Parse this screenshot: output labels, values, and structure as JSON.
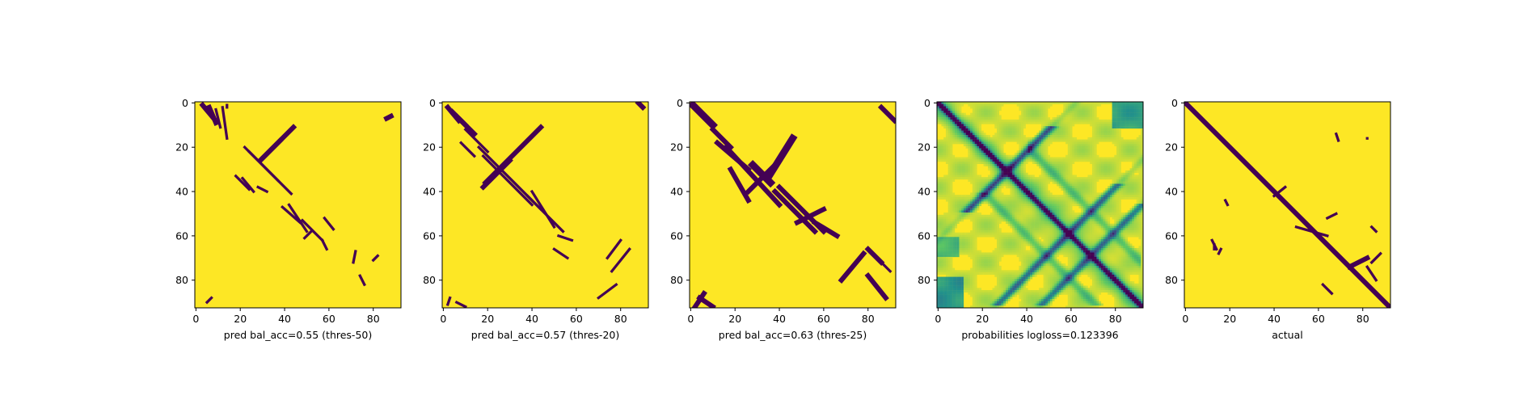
{
  "chart_data": [
    {
      "type": "heatmap",
      "xlabel": "pred bal_acc=0.55 (thres-50)",
      "xticks": [
        "0",
        "20",
        "40",
        "60",
        "80"
      ],
      "yticks": [
        "0",
        "20",
        "40",
        "60",
        "80"
      ],
      "n": 93,
      "colors": {
        "low": "#440154",
        "high": "#fde725"
      },
      "segments": [
        [
          3,
          1,
          8,
          7,
          1
        ],
        [
          6,
          2,
          9,
          9,
          1
        ],
        [
          9,
          3,
          11,
          11,
          0
        ],
        [
          12,
          2,
          14,
          16,
          0
        ],
        [
          14,
          1,
          14,
          2,
          0
        ],
        [
          29,
          26,
          38,
          17,
          1
        ],
        [
          30,
          25,
          44,
          11,
          1
        ],
        [
          22,
          20,
          43,
          41,
          0
        ],
        [
          24,
          22,
          37,
          35,
          0
        ],
        [
          18,
          33,
          24,
          39,
          0
        ],
        [
          21,
          34,
          26,
          40,
          0
        ],
        [
          28,
          38,
          32,
          40,
          0
        ],
        [
          39,
          47,
          47,
          54,
          0
        ],
        [
          42,
          46,
          50,
          58,
          0
        ],
        [
          48,
          53,
          57,
          62,
          0
        ],
        [
          49,
          61,
          52,
          58,
          0
        ],
        [
          58,
          52,
          62,
          57,
          0
        ],
        [
          57,
          62,
          59,
          66,
          0
        ],
        [
          72,
          67,
          71,
          72,
          0
        ],
        [
          74,
          78,
          76,
          82,
          0
        ],
        [
          82,
          69,
          80,
          71,
          0
        ],
        [
          88,
          6,
          86,
          7,
          1
        ],
        [
          7,
          88,
          5,
          90,
          0
        ]
      ]
    },
    {
      "type": "heatmap",
      "xlabel": "pred bal_acc=0.57 (thres-20)",
      "xticks": [
        "0",
        "20",
        "40",
        "60",
        "80"
      ],
      "yticks": [
        "0",
        "20",
        "40",
        "60",
        "80"
      ],
      "n": 93,
      "colors": {
        "low": "#440154",
        "high": "#fde725"
      },
      "segments": [
        [
          2,
          2,
          7,
          8,
          1
        ],
        [
          4,
          4,
          10,
          10,
          1
        ],
        [
          6,
          6,
          14,
          14,
          1
        ],
        [
          10,
          12,
          20,
          22,
          0
        ],
        [
          8,
          18,
          14,
          24,
          0
        ],
        [
          18,
          38,
          30,
          26,
          1
        ],
        [
          19,
          36,
          44,
          11,
          1
        ],
        [
          16,
          20,
          44,
          48,
          0
        ],
        [
          18,
          24,
          40,
          46,
          0
        ],
        [
          38,
          42,
          54,
          58,
          0
        ],
        [
          40,
          40,
          50,
          56,
          0
        ],
        [
          52,
          60,
          58,
          62,
          0
        ],
        [
          50,
          66,
          56,
          70,
          0
        ],
        [
          80,
          62,
          74,
          70,
          0
        ],
        [
          84,
          66,
          76,
          76,
          0
        ],
        [
          78,
          82,
          70,
          88,
          0
        ],
        [
          88,
          0,
          90,
          2,
          1
        ],
        [
          6,
          90,
          10,
          92,
          0
        ],
        [
          3,
          88,
          2,
          91,
          0
        ]
      ]
    },
    {
      "type": "heatmap",
      "xlabel": "pred bal_acc=0.63 (thres-25)",
      "xticks": [
        "0",
        "20",
        "40",
        "60",
        "80"
      ],
      "yticks": [
        "0",
        "20",
        "40",
        "60",
        "80"
      ],
      "n": 93,
      "colors": {
        "low": "#440154",
        "high": "#fde725"
      },
      "segments": [
        [
          1,
          1,
          10,
          10,
          2
        ],
        [
          10,
          12,
          18,
          20,
          1
        ],
        [
          12,
          18,
          26,
          30,
          1
        ],
        [
          16,
          20,
          40,
          46,
          1
        ],
        [
          46,
          16,
          36,
          32,
          2
        ],
        [
          28,
          28,
          36,
          36,
          2
        ],
        [
          26,
          40,
          40,
          26,
          1
        ],
        [
          18,
          30,
          26,
          44,
          1
        ],
        [
          38,
          40,
          56,
          58,
          1
        ],
        [
          40,
          38,
          60,
          58,
          1
        ],
        [
          48,
          54,
          60,
          48,
          1
        ],
        [
          56,
          54,
          66,
          60,
          1
        ],
        [
          68,
          80,
          78,
          68,
          1
        ],
        [
          80,
          66,
          86,
          72,
          1
        ],
        [
          80,
          78,
          88,
          88,
          1
        ],
        [
          84,
          70,
          90,
          76,
          0
        ],
        [
          86,
          2,
          92,
          8,
          1
        ],
        [
          4,
          88,
          10,
          92,
          1
        ],
        [
          2,
          92,
          6,
          86,
          1
        ]
      ]
    },
    {
      "type": "heatmap",
      "xlabel": "probabilities logloss=0.123396",
      "xticks": [
        "0",
        "20",
        "40",
        "60",
        "80"
      ],
      "yticks": [
        "0",
        "20",
        "40",
        "60",
        "80"
      ],
      "n": 93,
      "colors": {
        "low": "#440154",
        "mid1": "#21918c",
        "mid2": "#5ec962",
        "high": "#fde725"
      },
      "segments": [],
      "probability_map": true
    },
    {
      "type": "heatmap",
      "xlabel": "actual",
      "xticks": [
        "0",
        "20",
        "40",
        "60",
        "80"
      ],
      "yticks": [
        "0",
        "20",
        "40",
        "60",
        "80"
      ],
      "n": 93,
      "colors": {
        "low": "#440154",
        "high": "#fde725"
      },
      "segments": [
        [
          0,
          0,
          92,
          92,
          1
        ],
        [
          12,
          62,
          14,
          66,
          0
        ],
        [
          19,
          46,
          18,
          44,
          0
        ],
        [
          16,
          66,
          15,
          68,
          0
        ],
        [
          45,
          38,
          40,
          42,
          0
        ],
        [
          68,
          14,
          69,
          17,
          0
        ],
        [
          64,
          52,
          68,
          50,
          0
        ],
        [
          62,
          82,
          66,
          86,
          0
        ],
        [
          74,
          74,
          82,
          70,
          1
        ],
        [
          82,
          74,
          86,
          80,
          0
        ],
        [
          88,
          68,
          84,
          72,
          0
        ],
        [
          84,
          56,
          86,
          58,
          0
        ],
        [
          13,
          64,
          13,
          66,
          0
        ],
        [
          82,
          16,
          82,
          16,
          0
        ],
        [
          50,
          56,
          64,
          60,
          0
        ]
      ]
    }
  ]
}
